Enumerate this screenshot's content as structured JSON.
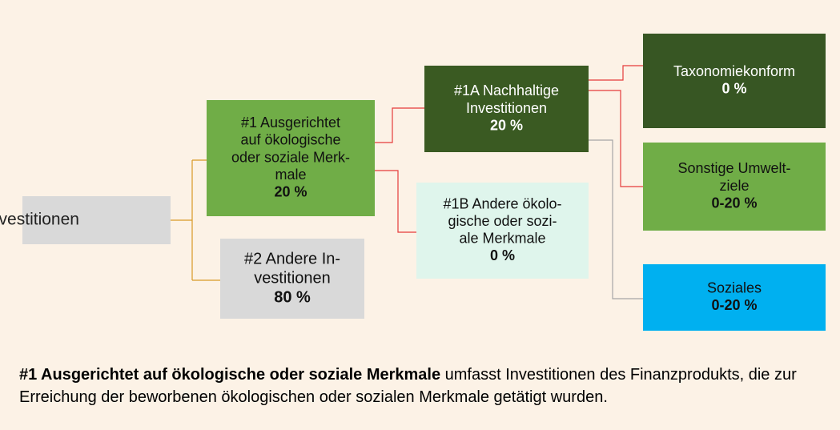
{
  "nodes": [
    {
      "lines": [
        "Investitionen"
      ]
    },
    {
      "lines": [
        "#1 Ausgerichtet",
        "auf ökologische",
        "oder soziale Merk-",
        "male"
      ],
      "value": "20 %"
    },
    {
      "lines": [
        "#2 Andere In-",
        "vestitionen"
      ],
      "value": "80 %"
    },
    {
      "lines": [
        "#1A Nachhaltige",
        "Investitionen"
      ],
      "value": "20 %"
    },
    {
      "lines": [
        "#1B Andere ökolo-",
        "gische oder sozi-",
        "ale Merkmale"
      ],
      "value": "0 %"
    },
    {
      "lines": [
        "Taxonomiekonform"
      ],
      "value": "0 %"
    },
    {
      "lines": [
        "Sonstige Umwelt-",
        "ziele"
      ],
      "value": "0-20 %"
    },
    {
      "lines": [
        "Soziales"
      ],
      "value": "0-20 %"
    }
  ],
  "footnote": {
    "bold": "#1 Ausgerichtet auf ökologische oder soziale Merkmale",
    "text": " umfasst Investitionen des Finanzprodukts, die zur Erreichung der beworbenen ökologischen oder sozialen Merkmale getätigt wurden."
  }
}
